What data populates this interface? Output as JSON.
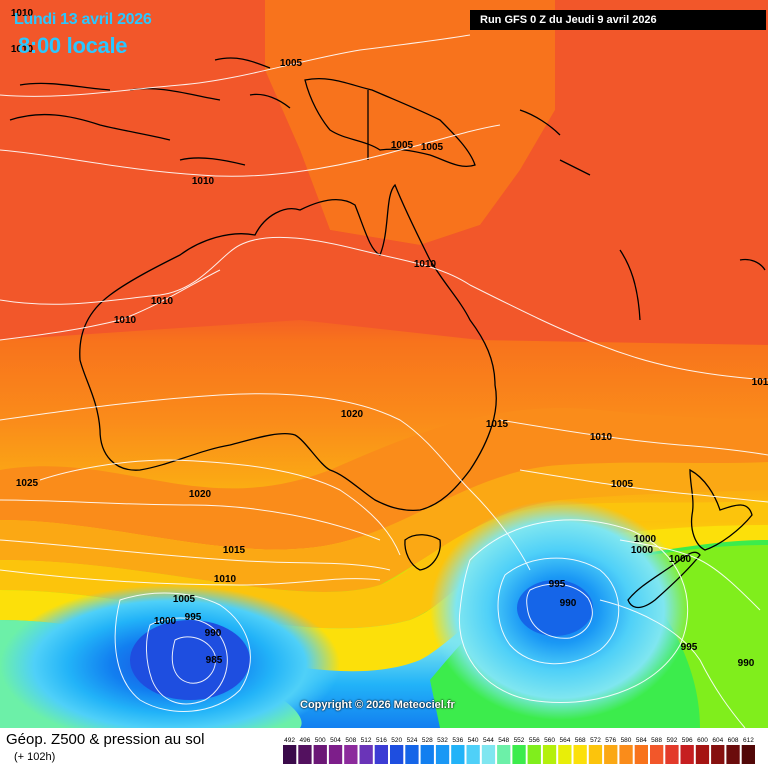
{
  "header": {
    "date": "Lundi 13 avril 2026",
    "time": "8:00 locale",
    "run_info": "Run GFS 0 Z du Jeudi 9 avril 2026"
  },
  "footer": {
    "copyright": "Copyright © 2026 Meteociel.fr",
    "title": "Géop. Z500 & pression au sol",
    "subtitle": "(+ 102h)"
  },
  "isobar_labels": [
    "1010",
    "1010",
    "1005",
    "1005",
    "1005",
    "1010",
    "1010",
    "1010",
    "1010",
    "1020",
    "1015",
    "1025",
    "1020",
    "1010",
    "1005",
    "1015",
    "1010",
    "1005",
    "995",
    "1000",
    "990",
    "985",
    "995",
    "990",
    "1000",
    "1000",
    "1000",
    "995",
    "990",
    "101"
  ],
  "color_scale": {
    "values": [
      "492",
      "496",
      "500",
      "504",
      "508",
      "512",
      "516",
      "520",
      "524",
      "528",
      "532",
      "536",
      "540",
      "544",
      "548",
      "552",
      "556",
      "560",
      "564",
      "568",
      "572",
      "576",
      "580",
      "584",
      "588",
      "592",
      "596",
      "600",
      "604",
      "608",
      "612"
    ],
    "colors": [
      "#3a0a4a",
      "#53115f",
      "#6b1776",
      "#7d1e8a",
      "#8c2a9c",
      "#6a34b8",
      "#3c3cd4",
      "#1e4ee0",
      "#1565e8",
      "#127ff0",
      "#1a98f5",
      "#22b3f8",
      "#4fd0f8",
      "#7fe6f0",
      "#6cf0a8",
      "#3cec4c",
      "#80ee1c",
      "#b4f00c",
      "#e8ee08",
      "#fce00a",
      "#fcc40c",
      "#fba814",
      "#fa8c1a",
      "#f8731c",
      "#f2572a",
      "#e33a2a",
      "#c61e20",
      "#a51412",
      "#86100f",
      "#6b0c0c",
      "#520808"
    ]
  },
  "colors": {
    "land_outline": "#000000",
    "isobar": "#ffffff",
    "title_text": "#2bc7ff"
  }
}
